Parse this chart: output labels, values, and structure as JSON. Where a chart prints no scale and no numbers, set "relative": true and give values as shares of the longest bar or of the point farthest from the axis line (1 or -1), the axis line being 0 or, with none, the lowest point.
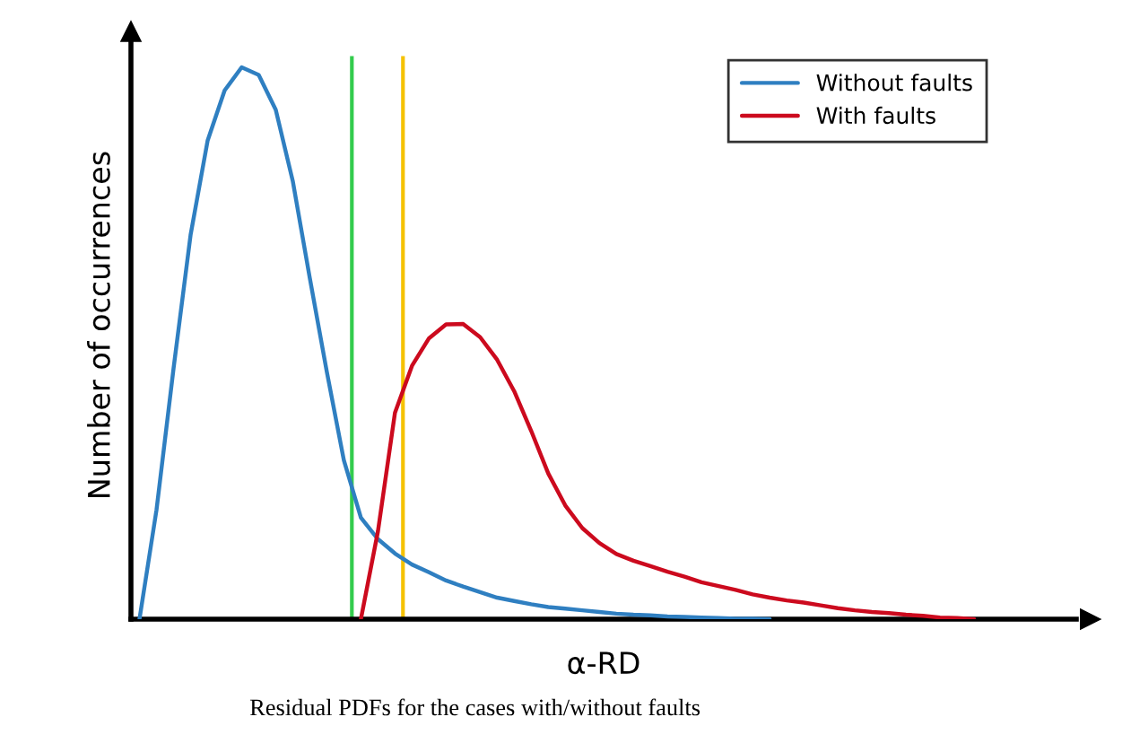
{
  "chart_data": {
    "type": "line",
    "relative": true,
    "xlabel": "α-RD",
    "ylabel": "Number of occurrences",
    "annotations": [
      "Residual PDFs for the cases with/without faults"
    ],
    "categories": [
      null,
      null,
      null,
      null,
      null,
      null,
      null,
      null,
      null,
      null,
      null,
      null,
      null,
      null,
      null,
      null,
      null,
      null,
      null,
      null,
      null,
      null,
      null,
      null,
      null,
      null,
      null,
      null,
      null,
      null,
      null,
      null,
      null,
      null,
      null,
      null,
      null,
      null,
      null,
      null,
      null,
      null,
      null,
      null,
      null,
      null,
      null,
      null,
      null,
      null
    ],
    "legend": "top right",
    "line_style": "solid",
    "series": [
      {
        "name": "Without faults",
        "color": "#2f7fc1",
        "values": [
          0,
          0.198,
          0.454,
          0.696,
          0.867,
          0.958,
          1,
          0.986,
          0.923,
          0.794,
          0.618,
          0.448,
          0.288,
          0.184,
          0.145,
          0.119,
          0.099,
          0.085,
          0.07,
          0.059,
          0.049,
          0.039,
          0.033,
          0.027,
          0.022,
          0.019,
          0.016,
          0.013,
          0.01,
          0.008,
          0.007,
          0.005,
          0.004,
          0.003,
          0.002,
          0.001,
          0.001,
          0,
          null,
          null,
          null,
          null,
          null,
          null,
          null,
          null,
          null,
          null,
          null,
          null
        ]
      },
      {
        "name": "With faults",
        "color": "#cc0a1e",
        "values": [
          null,
          null,
          null,
          null,
          null,
          null,
          null,
          null,
          null,
          null,
          null,
          null,
          null,
          0,
          0.159,
          0.374,
          0.459,
          0.509,
          0.534,
          0.535,
          0.511,
          0.47,
          0.413,
          0.341,
          0.264,
          0.206,
          0.165,
          0.138,
          0.118,
          0.106,
          0.096,
          0.086,
          0.077,
          0.067,
          0.06,
          0.053,
          0.045,
          0.039,
          0.034,
          0.03,
          0.025,
          0.02,
          0.016,
          0.013,
          0.011,
          0.008,
          0.006,
          0.003,
          0.002,
          0
        ]
      }
    ],
    "ref_lines": [
      {
        "axis": "x",
        "color": "#33cc4d",
        "line_style": "solid"
      },
      {
        "axis": "x",
        "color": "#f5c200",
        "line_style": "solid"
      }
    ]
  }
}
